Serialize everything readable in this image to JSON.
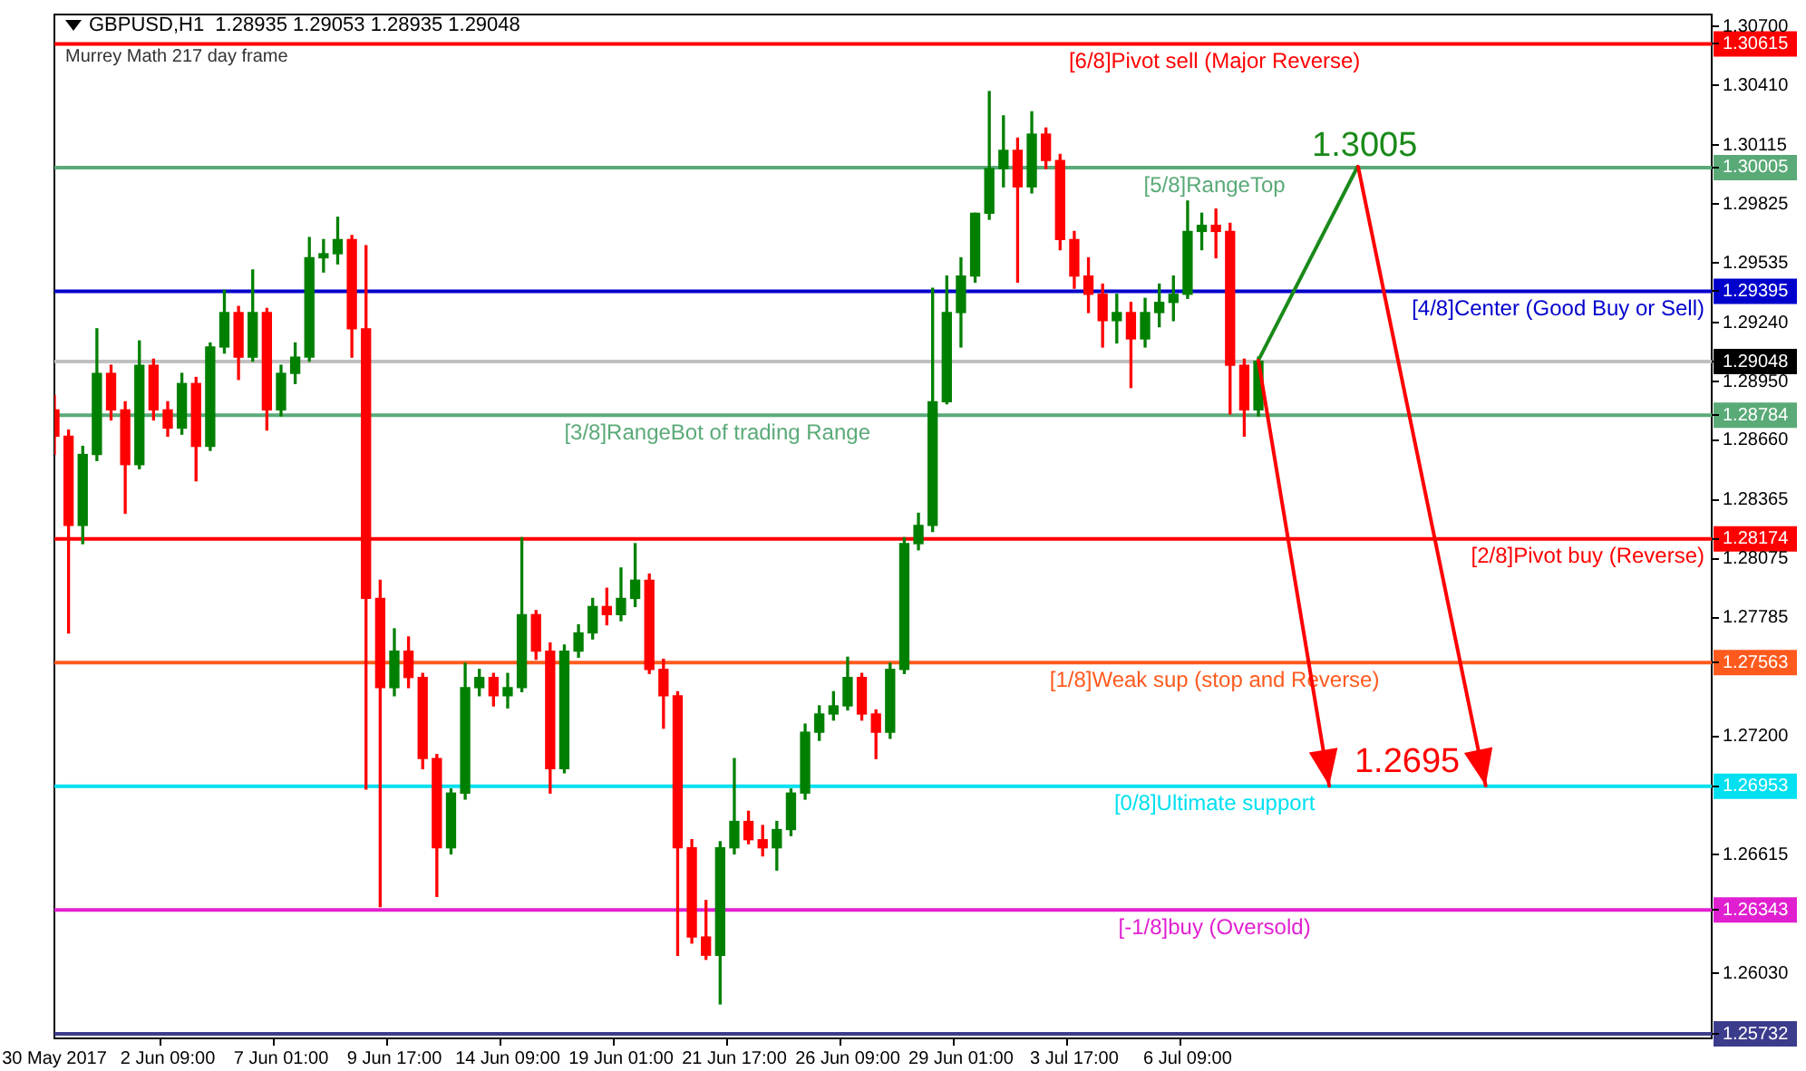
{
  "chart_data": {
    "type": "candlestick",
    "title": "GBPUSD,H1  1.28935 1.29053 1.28935 1.29048",
    "subtitle": "Murrey Math 217 day frame",
    "categories": [
      "30 May 2017",
      null,
      null,
      null,
      null,
      null,
      null,
      null,
      "2 Jun 09:00",
      null,
      null,
      null,
      null,
      null,
      null,
      null,
      "7 Jun 01:00",
      null,
      null,
      null,
      null,
      null,
      null,
      null,
      "9 Jun 17:00",
      null,
      null,
      null,
      null,
      null,
      null,
      null,
      "14 Jun 09:00",
      null,
      null,
      null,
      null,
      null,
      null,
      null,
      "19 Jun 01:00",
      null,
      null,
      null,
      null,
      null,
      null,
      null,
      "21 Jun 17:00",
      null,
      null,
      null,
      null,
      null,
      null,
      null,
      "26 Jun 09:00",
      null,
      null,
      null,
      null,
      null,
      null,
      null,
      "29 Jun 01:00",
      null,
      null,
      null,
      null,
      null,
      null,
      null,
      "3 Jul 17:00",
      null,
      null,
      null,
      null,
      null,
      null,
      null,
      "6 Jul 09:00",
      null,
      null,
      null,
      null,
      null,
      null,
      null,
      null,
      null,
      null,
      null,
      null,
      null,
      null,
      null,
      null,
      null,
      null,
      null,
      null,
      null,
      null,
      null,
      null,
      null,
      null,
      null,
      null,
      null,
      null,
      null,
      null,
      null,
      null,
      null,
      null,
      null
    ],
    "ohlc": [
      [
        1.2881,
        1.2888,
        1.2859,
        1.2868
      ],
      [
        1.2868,
        1.2871,
        1.2771,
        1.2824
      ],
      [
        1.2824,
        1.2863,
        1.2815,
        1.2859
      ],
      [
        1.2859,
        1.2921,
        1.2856,
        1.2899
      ],
      [
        1.2899,
        1.2903,
        1.2876,
        1.2881
      ],
      [
        1.2881,
        1.2885,
        1.283,
        1.2854
      ],
      [
        1.2854,
        1.2915,
        1.2852,
        1.2903
      ],
      [
        1.2903,
        1.2906,
        1.2876,
        1.2881
      ],
      [
        1.2881,
        1.2885,
        1.2868,
        1.2872
      ],
      [
        1.2872,
        1.2899,
        1.2869,
        1.2894
      ],
      [
        1.2894,
        1.2897,
        1.2846,
        1.2863
      ],
      [
        1.2863,
        1.2914,
        1.2861,
        1.2912
      ],
      [
        1.2912,
        1.294,
        1.2909,
        1.2929
      ],
      [
        1.2929,
        1.2932,
        1.2896,
        1.2907
      ],
      [
        1.2907,
        1.295,
        1.2905,
        1.2929
      ],
      [
        1.2929,
        1.2931,
        1.2871,
        1.2881
      ],
      [
        1.2881,
        1.2903,
        1.2878,
        1.2899
      ],
      [
        1.2899,
        1.2914,
        1.2894,
        1.2907
      ],
      [
        1.2907,
        1.2966,
        1.2905,
        1.2956
      ],
      [
        1.2956,
        1.2965,
        1.2949,
        1.2958
      ],
      [
        1.2958,
        1.2976,
        1.2953,
        1.2965
      ],
      [
        1.2965,
        1.2967,
        1.2907,
        1.2921
      ],
      [
        1.2921,
        1.2962,
        1.2694,
        1.2788
      ],
      [
        1.2788,
        1.2797,
        1.2636,
        1.2744
      ],
      [
        1.2744,
        1.2773,
        1.274,
        1.2762
      ],
      [
        1.2762,
        1.2769,
        1.2744,
        1.2749
      ],
      [
        1.2749,
        1.2751,
        1.2704,
        1.2709
      ],
      [
        1.2709,
        1.2711,
        1.2641,
        1.2665
      ],
      [
        1.2665,
        1.2694,
        1.2662,
        1.2692
      ],
      [
        1.2692,
        1.2756,
        1.2689,
        1.2744
      ],
      [
        1.2744,
        1.2753,
        1.274,
        1.2749
      ],
      [
        1.2749,
        1.2751,
        1.2735,
        1.274
      ],
      [
        1.274,
        1.2751,
        1.2734,
        1.2744
      ],
      [
        1.2744,
        1.2818,
        1.2742,
        1.278
      ],
      [
        1.278,
        1.2782,
        1.2758,
        1.2762
      ],
      [
        1.2762,
        1.2766,
        1.2692,
        1.2704
      ],
      [
        1.2704,
        1.2765,
        1.2702,
        1.2762
      ],
      [
        1.2762,
        1.2775,
        1.2759,
        1.2771
      ],
      [
        1.2771,
        1.2788,
        1.2768,
        1.2784
      ],
      [
        1.2784,
        1.2793,
        1.2775,
        1.278
      ],
      [
        1.278,
        1.2803,
        1.2777,
        1.2788
      ],
      [
        1.2788,
        1.2815,
        1.2784,
        1.2797
      ],
      [
        1.2797,
        1.28,
        1.2751,
        1.2753
      ],
      [
        1.2753,
        1.2758,
        1.2724,
        1.274
      ],
      [
        1.274,
        1.2742,
        1.2612,
        1.2665
      ],
      [
        1.2665,
        1.2669,
        1.2618,
        1.2621
      ],
      [
        1.2621,
        1.2639,
        1.261,
        1.2612
      ],
      [
        1.2612,
        1.2668,
        1.2588,
        1.2665
      ],
      [
        1.2665,
        1.2709,
        1.2662,
        1.2678
      ],
      [
        1.2678,
        1.2683,
        1.2667,
        1.2669
      ],
      [
        1.2669,
        1.2676,
        1.2661,
        1.2665
      ],
      [
        1.2665,
        1.2678,
        1.2654,
        1.2674
      ],
      [
        1.2674,
        1.2694,
        1.2671,
        1.2692
      ],
      [
        1.2692,
        1.2726,
        1.2689,
        1.2722
      ],
      [
        1.2722,
        1.2735,
        1.2718,
        1.2731
      ],
      [
        1.2731,
        1.2742,
        1.2728,
        1.2735
      ],
      [
        1.2735,
        1.2759,
        1.2733,
        1.2749
      ],
      [
        1.2749,
        1.2751,
        1.2728,
        1.2731
      ],
      [
        1.2731,
        1.2733,
        1.2709,
        1.2722
      ],
      [
        1.2722,
        1.2756,
        1.2719,
        1.2753
      ],
      [
        1.2753,
        1.2818,
        1.2751,
        1.2815
      ],
      [
        1.2815,
        1.283,
        1.2812,
        1.2824
      ],
      [
        1.2824,
        1.2941,
        1.2821,
        1.2885
      ],
      [
        1.2885,
        1.2947,
        1.2884,
        1.2929
      ],
      [
        1.2929,
        1.2956,
        1.2912,
        1.2947
      ],
      [
        1.2947,
        1.2978,
        1.2944,
        1.2978
      ],
      [
        1.2978,
        1.3038,
        1.2975,
        1.3
      ],
      [
        1.3,
        1.3026,
        1.2991,
        1.3009
      ],
      [
        1.3009,
        1.3015,
        1.2944,
        1.2991
      ],
      [
        1.2991,
        1.3028,
        1.2988,
        1.3017
      ],
      [
        1.3017,
        1.302,
        1.3,
        1.3004
      ],
      [
        1.3004,
        1.3007,
        1.296,
        1.2965
      ],
      [
        1.2965,
        1.2969,
        1.2941,
        1.2947
      ],
      [
        1.2947,
        1.2956,
        1.2929,
        1.2938
      ],
      [
        1.2938,
        1.2943,
        1.2912,
        1.2925
      ],
      [
        1.2925,
        1.2938,
        1.2914,
        1.2929
      ],
      [
        1.2929,
        1.2934,
        1.2892,
        1.2916
      ],
      [
        1.2916,
        1.2936,
        1.2912,
        1.2929
      ],
      [
        1.2929,
        1.2943,
        1.2922,
        1.2934
      ],
      [
        1.2934,
        1.2947,
        1.2925,
        1.2938
      ],
      [
        1.2938,
        1.2984,
        1.2936,
        1.2969
      ],
      [
        1.2969,
        1.2978,
        1.296,
        1.2972
      ],
      [
        1.2972,
        1.298,
        1.2956,
        1.2969
      ],
      [
        1.2969,
        1.2973,
        1.2879,
        1.2903
      ],
      [
        1.2903,
        1.2906,
        1.2868,
        1.2881
      ],
      [
        1.2881,
        1.2907,
        1.2878,
        1.2905
      ],
      null,
      null,
      null,
      null,
      null,
      null,
      null,
      null,
      null,
      null,
      null,
      null,
      null,
      null,
      null,
      null,
      null,
      null,
      null,
      null,
      null,
      null,
      null,
      null,
      null,
      null,
      null,
      null,
      null,
      null,
      null,
      null
    ],
    "colors": [
      "#ff0000",
      "#ff0000",
      "#008000",
      "#008000",
      "#ff0000",
      "#ff0000",
      "#008000",
      "#ff0000",
      "#ff0000",
      "#008000",
      "#ff0000",
      "#008000",
      "#008000",
      "#ff0000",
      "#008000",
      "#ff0000",
      "#008000",
      "#008000",
      "#008000",
      "#008000",
      "#008000",
      "#ff0000",
      "#ff0000",
      "#ff0000",
      "#008000",
      "#ff0000",
      "#ff0000",
      "#ff0000",
      "#008000",
      "#008000",
      "#008000",
      "#ff0000",
      "#008000",
      "#008000",
      "#ff0000",
      "#ff0000",
      "#008000",
      "#008000",
      "#008000",
      "#ff0000",
      "#008000",
      "#008000",
      "#ff0000",
      "#ff0000",
      "#ff0000",
      "#ff0000",
      "#ff0000",
      "#008000",
      "#008000",
      "#ff0000",
      "#ff0000",
      "#008000",
      "#008000",
      "#008000",
      "#008000",
      "#008000",
      "#008000",
      "#ff0000",
      "#ff0000",
      "#008000",
      "#008000",
      "#008000",
      "#008000",
      "#008000",
      "#008000",
      "#008000",
      "#008000",
      "#008000",
      "#ff0000",
      "#008000",
      "#ff0000",
      "#ff0000",
      "#ff0000",
      "#ff0000",
      "#ff0000",
      "#008000",
      "#ff0000",
      "#008000",
      "#008000",
      "#008000",
      "#008000",
      "#008000",
      "#ff0000",
      "#ff0000",
      "#ff0000",
      "#008000",
      null,
      null,
      null,
      null,
      null,
      null,
      null,
      null,
      null,
      null,
      null,
      null,
      null,
      null,
      null,
      null,
      null,
      null,
      null,
      null,
      null,
      null,
      null,
      null,
      null,
      null,
      null,
      null,
      null,
      null,
      null,
      null
    ],
    "ylim": [
      1.2571,
      1.3076
    ],
    "yticks": [
      {
        "value": 1.307,
        "label": "1.30700"
      },
      {
        "value": 1.3041,
        "label": "1.30410"
      },
      {
        "value": 1.30115,
        "label": "1.30115"
      },
      {
        "value": 1.29825,
        "label": "1.29825"
      },
      {
        "value": 1.29535,
        "label": "1.29535"
      },
      {
        "value": 1.2924,
        "label": "1.29240"
      },
      {
        "value": 1.2895,
        "label": "1.28950"
      },
      {
        "value": 1.2866,
        "label": "1.28660"
      },
      {
        "value": 1.28365,
        "label": "1.28365"
      },
      {
        "value": 1.28075,
        "label": "1.28075"
      },
      {
        "value": 1.27785,
        "label": "1.27785"
      },
      {
        "value": 1.27563,
        "label": "1.27563"
      },
      {
        "value": 1.26953,
        "label": "1.26953"
      },
      {
        "value": 1.26343,
        "label": "1.26343"
      },
      {
        "value": 1.25732,
        "label": "1.25732"
      },
      {
        "value": 1.30615,
        "label": "1.30615"
      },
      {
        "value": 1.30005,
        "label": "1.30005"
      },
      {
        "value": 1.29395,
        "label": "1.29395"
      },
      {
        "value": 1.29048,
        "label": "1.29048"
      },
      {
        "value": 1.28784,
        "label": "1.28784"
      },
      {
        "value": 1.28174,
        "label": "1.28174"
      },
      {
        "value": 1.272,
        "label": "1.27200"
      },
      {
        "value": 1.26615,
        "label": "1.26615"
      },
      {
        "value": 1.2603,
        "label": "1.26030"
      }
    ],
    "ref_lines": [
      {
        "axis": "y",
        "value": 1.30615,
        "label": "[6/8]Pivot sell (Major Reverse)",
        "color": "#ff0000"
      },
      {
        "axis": "y",
        "value": 1.30005,
        "label": "[5/8]RangeTop",
        "color": "#5aaa78"
      },
      {
        "axis": "y",
        "value": 1.29395,
        "label": "[4/8]Center (Good Buy or Sell)",
        "color": "#0000cc"
      },
      {
        "axis": "y",
        "value": 1.29048,
        "label": null,
        "color": "#c0c0c0"
      },
      {
        "axis": "y",
        "value": 1.28784,
        "label": "[3/8]RangeBot of trading Range",
        "color": "#5aaa78"
      },
      {
        "axis": "y",
        "value": 1.28174,
        "label": "[2/8]Pivot buy (Reverse)",
        "color": "#ff0000"
      },
      {
        "axis": "y",
        "value": 1.27563,
        "label": "[1/8]Weak sup (stop and Reverse)",
        "color": "#ff5a1e"
      },
      {
        "axis": "y",
        "value": 1.26953,
        "label": "[0/8]Ultimate support",
        "color": "#00e0f0"
      },
      {
        "axis": "y",
        "value": 1.26343,
        "label": "[-1/8]buy (Oversold)",
        "color": "#e020d0"
      },
      {
        "axis": "y",
        "value": 1.25732,
        "label": null,
        "color": "#3c3c8c"
      }
    ],
    "annotations": [
      {
        "text": "1.3005",
        "y": 1.30005
      },
      {
        "text": "1.2695",
        "y": 1.26953
      }
    ],
    "grid": false,
    "legend": false
  }
}
